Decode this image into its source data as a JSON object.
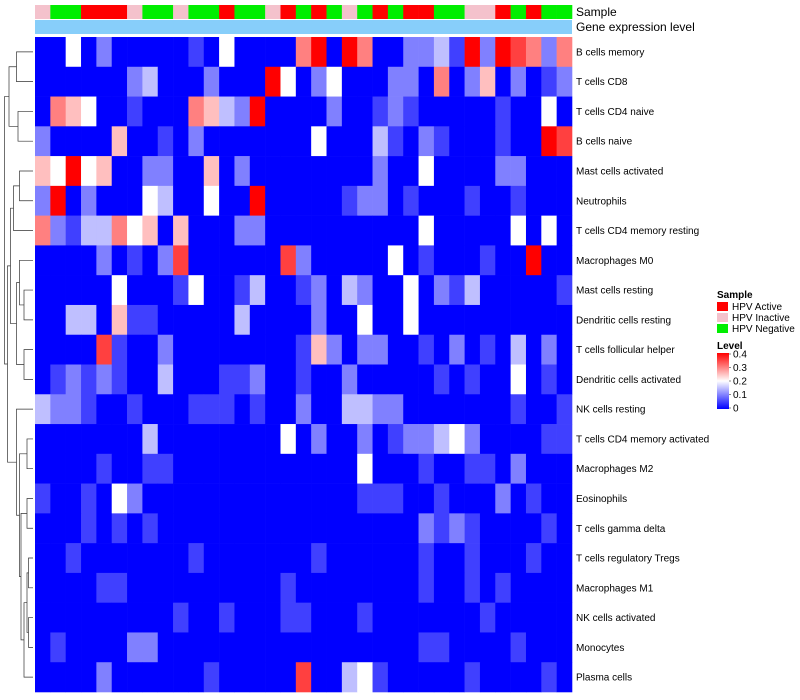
{
  "chart_data": {
    "type": "heatmap",
    "annotation_labels": {
      "sample": "Sample",
      "gene_expression": "Gene expression level"
    },
    "row_labels": [
      "B cells memory",
      "T cells CD8",
      "T cells CD4 naive",
      "B cells naive",
      "Mast cells activated",
      "Neutrophils",
      "T cells CD4 memory resting",
      "Macrophages M0",
      "Mast cells resting",
      "Dendritic cells resting",
      "T cells follicular helper",
      "Dendritic cells activated",
      "NK cells resting",
      "T cells CD4 memory activated",
      "Macrophages M2",
      "Eosinophils",
      "T cells gamma delta",
      "T cells regulatory  Tregs",
      "Macrophages M1",
      "NK cells activated",
      "Monocytes",
      "Plasma cells"
    ],
    "sample_groups": [
      "I",
      "N",
      "N",
      "A",
      "A",
      "A",
      "I",
      "N",
      "N",
      "I",
      "N",
      "N",
      "A",
      "N",
      "N",
      "I",
      "A",
      "N",
      "A",
      "N",
      "I",
      "N",
      "A",
      "N",
      "A",
      "A",
      "N",
      "N",
      "I",
      "I",
      "A",
      "N",
      "A",
      "N",
      "N"
    ],
    "sample_legend": {
      "title": "Sample",
      "items": [
        {
          "key": "A",
          "label": "HPV Active",
          "color": "#ff0000"
        },
        {
          "key": "I",
          "label": "HPV Inactive",
          "color": "#f4c2cc"
        },
        {
          "key": "N",
          "label": "HPV Negative",
          "color": "#00ee00"
        }
      ]
    },
    "gene_expression_color": "#87cefa",
    "level_legend": {
      "title": "Level",
      "ticks": [
        "0.4",
        "0.3",
        "0.2",
        "0.1",
        "0"
      ],
      "range": [
        0,
        0.4
      ],
      "colors": [
        "#0000ff",
        "#ffffff",
        "#ff0000"
      ]
    },
    "values": [
      [
        0,
        0,
        0.2,
        0,
        0.1,
        0,
        0,
        0,
        0,
        0,
        0.05,
        0,
        0.2,
        0,
        0,
        0,
        0,
        0.3,
        0.4,
        0,
        0.4,
        0.3,
        0,
        0,
        0.1,
        0.1,
        0.15,
        0.05,
        0.4,
        0.1,
        0.4,
        0.35,
        0.3,
        0.1,
        0.3
      ],
      [
        0,
        0,
        0,
        0,
        0,
        0,
        0.1,
        0.15,
        0,
        0,
        0,
        0.1,
        0,
        0,
        0,
        0.4,
        0.2,
        0,
        0.1,
        0.2,
        0,
        0,
        0,
        0.1,
        0.1,
        0,
        0.3,
        0,
        0.1,
        0.25,
        0,
        0.1,
        0,
        0.05,
        0.1
      ],
      [
        0,
        0.3,
        0.25,
        0.2,
        0,
        0,
        0.05,
        0,
        0,
        0,
        0.3,
        0.25,
        0.15,
        0.1,
        0.4,
        0,
        0,
        0,
        0,
        0.1,
        0,
        0,
        0.05,
        0.1,
        0.05,
        0,
        0,
        0,
        0,
        0,
        0.05,
        0,
        0,
        0.2,
        0
      ],
      [
        0.1,
        0,
        0,
        0,
        0,
        0.25,
        0,
        0,
        0.05,
        0,
        0.1,
        0,
        0,
        0,
        0,
        0,
        0,
        0,
        0.2,
        0,
        0,
        0,
        0.15,
        0.05,
        0,
        0.1,
        0.05,
        0,
        0,
        0,
        0.05,
        0,
        0,
        0.4,
        0.35
      ],
      [
        0.25,
        0.2,
        0.4,
        0.2,
        0.25,
        0,
        0,
        0.1,
        0.1,
        0,
        0,
        0.25,
        0,
        0.1,
        0,
        0,
        0,
        0,
        0,
        0,
        0,
        0,
        0.1,
        0,
        0,
        0.2,
        0,
        0,
        0,
        0,
        0.1,
        0.1,
        0,
        0,
        0
      ],
      [
        0.1,
        0.4,
        0,
        0.1,
        0,
        0,
        0,
        0.2,
        0.15,
        0,
        0,
        0.2,
        0,
        0,
        0.4,
        0,
        0,
        0,
        0,
        0,
        0.05,
        0.1,
        0.1,
        0,
        0.05,
        0,
        0,
        0,
        0.05,
        0,
        0,
        0.05,
        0,
        0,
        0
      ],
      [
        0.3,
        0.1,
        0.05,
        0.15,
        0.15,
        0.3,
        0.2,
        0.25,
        0,
        0.25,
        0,
        0,
        0,
        0.1,
        0.1,
        0,
        0,
        0,
        0,
        0,
        0,
        0,
        0,
        0,
        0,
        0.2,
        0,
        0,
        0,
        0,
        0,
        0.2,
        0,
        0.2,
        0
      ],
      [
        0,
        0,
        0,
        0,
        0.1,
        0,
        0.05,
        0,
        0.1,
        0.35,
        0,
        0,
        0,
        0,
        0,
        0,
        0.35,
        0.1,
        0,
        0,
        0,
        0,
        0,
        0.2,
        0,
        0.05,
        0,
        0,
        0,
        0.05,
        0,
        0,
        0.4,
        0,
        0
      ],
      [
        0,
        0,
        0,
        0,
        0,
        0.2,
        0,
        0,
        0,
        0.05,
        0.2,
        0,
        0,
        0.05,
        0.15,
        0,
        0,
        0.05,
        0.1,
        0,
        0.15,
        0.1,
        0,
        0,
        0.2,
        0,
        0.1,
        0.05,
        0.15,
        0,
        0,
        0,
        0,
        0,
        0.05
      ],
      [
        0,
        0,
        0.15,
        0.15,
        0,
        0.25,
        0.05,
        0.05,
        0,
        0,
        0,
        0,
        0,
        0.15,
        0,
        0,
        0,
        0,
        0.1,
        0,
        0,
        0.2,
        0,
        0,
        0.2,
        0,
        0,
        0,
        0,
        0,
        0,
        0,
        0,
        0,
        0
      ],
      [
        0,
        0,
        0,
        0,
        0.35,
        0.05,
        0,
        0,
        0.1,
        0,
        0,
        0,
        0,
        0,
        0,
        0,
        0,
        0.05,
        0.25,
        0.1,
        0,
        0.1,
        0.1,
        0,
        0,
        0.05,
        0,
        0.1,
        0,
        0.05,
        0,
        0.15,
        0,
        0.1,
        0
      ],
      [
        0,
        0.05,
        0.1,
        0.05,
        0.1,
        0.05,
        0,
        0,
        0.15,
        0,
        0,
        0,
        0.05,
        0.05,
        0.1,
        0,
        0,
        0.05,
        0,
        0,
        0.1,
        0,
        0,
        0,
        0,
        0,
        0.05,
        0,
        0.05,
        0,
        0,
        0.2,
        0,
        0.05,
        0
      ],
      [
        0.15,
        0.1,
        0.1,
        0.05,
        0,
        0,
        0.05,
        0,
        0,
        0,
        0.05,
        0.05,
        0.05,
        0,
        0.05,
        0,
        0,
        0.1,
        0,
        0,
        0.15,
        0.15,
        0.1,
        0.1,
        0,
        0,
        0,
        0,
        0,
        0,
        0,
        0.05,
        0,
        0,
        0.05
      ],
      [
        0,
        0,
        0,
        0,
        0,
        0,
        0,
        0.15,
        0,
        0,
        0,
        0,
        0,
        0,
        0,
        0,
        0.2,
        0,
        0.1,
        0,
        0,
        0.1,
        0,
        0.05,
        0.1,
        0.1,
        0.15,
        0.2,
        0.1,
        0,
        0,
        0,
        0,
        0.05,
        0.05
      ],
      [
        0,
        0,
        0,
        0,
        0.05,
        0,
        0,
        0.05,
        0.05,
        0,
        0,
        0,
        0,
        0,
        0,
        0,
        0,
        0,
        0,
        0,
        0,
        0.2,
        0,
        0,
        0,
        0.05,
        0,
        0,
        0.05,
        0.05,
        0,
        0.1,
        0,
        0,
        0
      ],
      [
        0.05,
        0,
        0,
        0.05,
        0,
        0.2,
        0.1,
        0,
        0,
        0,
        0,
        0,
        0,
        0,
        0,
        0,
        0,
        0,
        0,
        0,
        0,
        0.05,
        0.05,
        0.05,
        0,
        0,
        0.05,
        0,
        0,
        0,
        0.1,
        0,
        0.05,
        0,
        0
      ],
      [
        0,
        0,
        0,
        0.05,
        0,
        0.05,
        0,
        0.05,
        0,
        0,
        0,
        0,
        0,
        0,
        0,
        0,
        0,
        0,
        0,
        0,
        0,
        0,
        0,
        0,
        0,
        0.1,
        0.05,
        0.1,
        0.05,
        0,
        0,
        0,
        0,
        0.05,
        0
      ],
      [
        0,
        0,
        0.05,
        0,
        0,
        0,
        0,
        0,
        0,
        0,
        0.05,
        0,
        0,
        0,
        0,
        0,
        0,
        0,
        0.05,
        0,
        0,
        0,
        0,
        0,
        0,
        0.05,
        0,
        0,
        0.05,
        0,
        0,
        0,
        0.05,
        0,
        0
      ],
      [
        0,
        0,
        0,
        0,
        0.05,
        0.05,
        0,
        0,
        0,
        0,
        0,
        0,
        0,
        0,
        0,
        0,
        0.05,
        0,
        0,
        0,
        0,
        0,
        0,
        0,
        0,
        0.05,
        0,
        0,
        0.05,
        0,
        0.05,
        0,
        0,
        0,
        0
      ],
      [
        0,
        0,
        0,
        0,
        0,
        0,
        0,
        0,
        0,
        0.05,
        0,
        0,
        0.05,
        0,
        0,
        0,
        0.05,
        0.05,
        0,
        0,
        0,
        0.05,
        0,
        0,
        0,
        0,
        0,
        0,
        0,
        0.05,
        0,
        0,
        0,
        0,
        0
      ],
      [
        0,
        0.05,
        0,
        0,
        0,
        0,
        0.1,
        0.1,
        0,
        0,
        0,
        0,
        0,
        0,
        0,
        0,
        0,
        0,
        0,
        0,
        0,
        0,
        0,
        0,
        0,
        0.05,
        0.05,
        0,
        0,
        0,
        0,
        0.05,
        0,
        0,
        0
      ],
      [
        0,
        0,
        0,
        0,
        0.1,
        0,
        0,
        0,
        0,
        0,
        0,
        0.05,
        0,
        0,
        0,
        0,
        0,
        0.35,
        0,
        0,
        0.15,
        0.2,
        0.05,
        0,
        0,
        0,
        0,
        0,
        0.05,
        0,
        0,
        0,
        0,
        0.05,
        0
      ]
    ]
  }
}
